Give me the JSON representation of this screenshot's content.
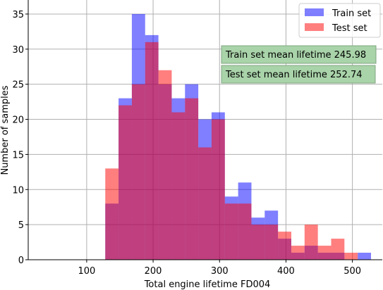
{
  "chart_data": {
    "type": "histogram",
    "title": "",
    "xlabel": "Total engine lifetime FD004",
    "ylabel": "Number of samples",
    "xlim": [
      12,
      545
    ],
    "ylim": [
      0,
      37
    ],
    "x_ticks": [
      100,
      200,
      300,
      400,
      500
    ],
    "y_ticks": [
      0,
      5,
      10,
      15,
      20,
      25,
      30,
      35
    ],
    "grid": true,
    "legend_position": "top-right",
    "bins": [
      128,
      148,
      168,
      188,
      208,
      228,
      248,
      268,
      288,
      308,
      328,
      348,
      368,
      388,
      408,
      428,
      448,
      468,
      488,
      508,
      528
    ],
    "series": [
      {
        "name": "Train set",
        "color": "#0000ff",
        "alpha": 0.5,
        "values": [
          8,
          23,
          35,
          32,
          25,
          23,
          25,
          20,
          21,
          9,
          11,
          6,
          7,
          3,
          1,
          2,
          1,
          1,
          0,
          1
        ]
      },
      {
        "name": "Test set",
        "color": "#ff0000",
        "alpha": 0.5,
        "values": [
          13,
          22,
          25,
          31,
          27,
          21,
          23,
          16,
          20,
          8,
          8,
          5,
          5,
          4,
          2,
          5,
          2,
          3,
          1,
          0
        ]
      }
    ],
    "annotations": [
      {
        "text": "Train set mean lifetime 245.98",
        "bg": "#a9d3a9"
      },
      {
        "text": "Test set mean lifetime 252.74",
        "bg": "#a9d3a9"
      }
    ]
  }
}
